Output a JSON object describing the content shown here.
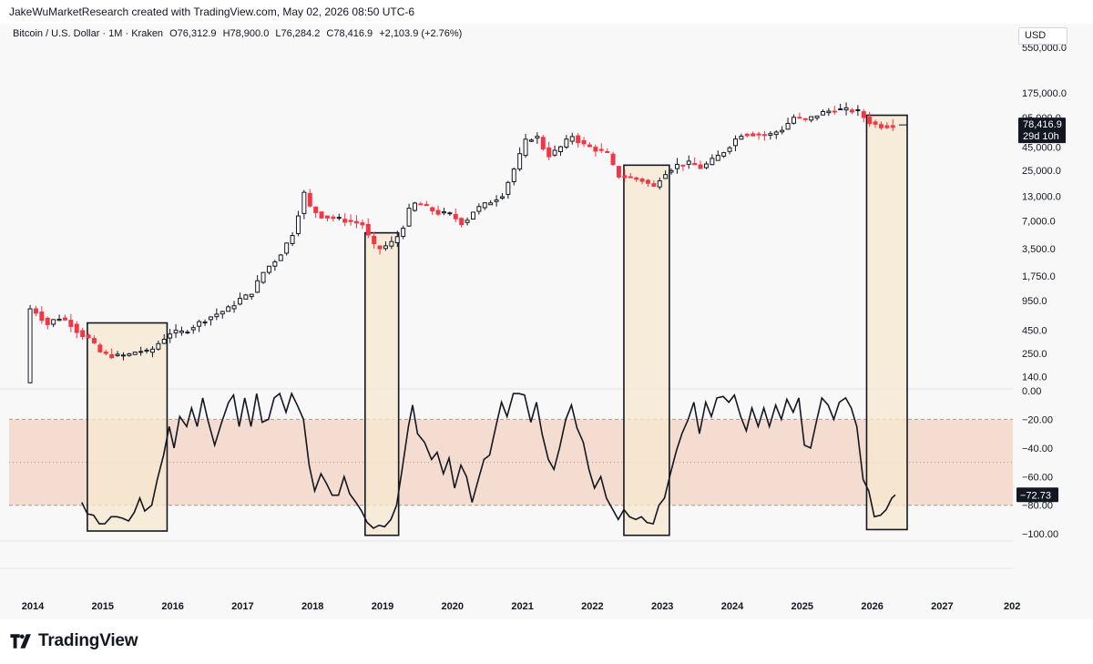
{
  "header": {
    "credit": "JakeWuMarketResearch created with TradingView.com, May 02, 2026 08:50 UTC-6"
  },
  "legend": {
    "symbol": "Bitcoin / U.S. Dollar · 1M · Kraken",
    "open": "O76,312.9",
    "high": "H78,900.0",
    "low": "L76,284.2",
    "close": "C78,416.9",
    "change": "+2,103.9 (+2.76%)"
  },
  "currency": "USD",
  "price_badge": {
    "price": "78,416.9",
    "countdown": "29d 10h"
  },
  "osc_badge": "−72.73",
  "footer": {
    "brand": "TradingView"
  },
  "colors": {
    "up": "#ffffff",
    "down": "#f23645",
    "outline": "#131722",
    "box_fill": "#f7e7cf",
    "band_fill": "#f4ddd0"
  },
  "chart_data": [
    {
      "type": "candlestick",
      "scale": "log",
      "x_ticks": [
        "2014",
        "2015",
        "2016",
        "2017",
        "2018",
        "2019",
        "2020",
        "2021",
        "2022",
        "2023",
        "2024",
        "2025",
        "2026",
        "2027",
        "202"
      ],
      "y_ticks": [
        "140.0",
        "250.0",
        "450.0",
        "950.0",
        "1,750.0",
        "3,500.0",
        "7,000.0",
        "13,000.0",
        "25,000.0",
        "45,000.0",
        "95,000.0",
        "175,000.0",
        "550,000.0"
      ],
      "ylim": [
        110,
        400000
      ],
      "price_path": [
        [
          2013.92,
          120
        ],
        [
          2013.96,
          800
        ],
        [
          2014.08,
          720
        ],
        [
          2014.25,
          520
        ],
        [
          2014.4,
          620
        ],
        [
          2014.55,
          560
        ],
        [
          2014.7,
          420
        ],
        [
          2014.85,
          360
        ],
        [
          2015.0,
          260
        ],
        [
          2015.1,
          240
        ],
        [
          2015.25,
          235
        ],
        [
          2015.4,
          240
        ],
        [
          2015.55,
          270
        ],
        [
          2015.7,
          255
        ],
        [
          2015.85,
          330
        ],
        [
          2016.0,
          420
        ],
        [
          2016.2,
          430
        ],
        [
          2016.45,
          560
        ],
        [
          2016.6,
          640
        ],
        [
          2016.85,
          780
        ],
        [
          2017.0,
          980
        ],
        [
          2017.15,
          1100
        ],
        [
          2017.35,
          2000
        ],
        [
          2017.55,
          2800
        ],
        [
          2017.75,
          5000
        ],
        [
          2017.92,
          14000
        ],
        [
          2018.0,
          10000
        ],
        [
          2018.15,
          8000
        ],
        [
          2018.35,
          7500
        ],
        [
          2018.55,
          7000
        ],
        [
          2018.75,
          6500
        ],
        [
          2018.9,
          3800
        ],
        [
          2019.0,
          3500
        ],
        [
          2019.15,
          3900
        ],
        [
          2019.3,
          5200
        ],
        [
          2019.45,
          10500
        ],
        [
          2019.55,
          11000
        ],
        [
          2019.7,
          9500
        ],
        [
          2019.85,
          8500
        ],
        [
          2020.0,
          8300
        ],
        [
          2020.2,
          6500
        ],
        [
          2020.35,
          9200
        ],
        [
          2020.55,
          11000
        ],
        [
          2020.75,
          13500
        ],
        [
          2020.95,
          29000
        ],
        [
          2021.1,
          55000
        ],
        [
          2021.25,
          58000
        ],
        [
          2021.4,
          36000
        ],
        [
          2021.55,
          42000
        ],
        [
          2021.75,
          60000
        ],
        [
          2021.9,
          48000
        ],
        [
          2022.1,
          42000
        ],
        [
          2022.25,
          38000
        ],
        [
          2022.4,
          22000
        ],
        [
          2022.55,
          21000
        ],
        [
          2022.75,
          19500
        ],
        [
          2022.92,
          16500
        ],
        [
          2023.05,
          23000
        ],
        [
          2023.25,
          28500
        ],
        [
          2023.45,
          30000
        ],
        [
          2023.6,
          26500
        ],
        [
          2023.8,
          34000
        ],
        [
          2023.95,
          42000
        ],
        [
          2024.15,
          62000
        ],
        [
          2024.3,
          63000
        ],
        [
          2024.55,
          60000
        ],
        [
          2024.75,
          70000
        ],
        [
          2024.92,
          95000
        ],
        [
          2025.1,
          88000
        ],
        [
          2025.3,
          105000
        ],
        [
          2025.5,
          115000
        ],
        [
          2025.7,
          114000
        ],
        [
          2025.85,
          109000
        ],
        [
          2025.95,
          90000
        ],
        [
          2026.05,
          80000
        ],
        [
          2026.2,
          76000
        ],
        [
          2026.33,
          78416.9
        ]
      ]
    },
    {
      "type": "line",
      "y_ticks": [
        "0.00",
        "−20.00",
        "−40.00",
        "−60.00",
        "−80.00",
        "−100.00"
      ],
      "ylim": [
        -105,
        0
      ],
      "band": [
        -80,
        -20
      ],
      "levels": [
        -20,
        -50,
        -80
      ],
      "series": [
        {
          "values": [
            [
              2014.7,
              -78
            ],
            [
              2014.78,
              -86
            ],
            [
              2014.87,
              -87
            ],
            [
              2014.95,
              -93
            ],
            [
              2015.03,
              -93
            ],
            [
              2015.12,
              -88
            ],
            [
              2015.2,
              -88
            ],
            [
              2015.28,
              -89
            ],
            [
              2015.37,
              -91
            ],
            [
              2015.45,
              -85
            ],
            [
              2015.53,
              -75
            ],
            [
              2015.6,
              -84
            ],
            [
              2015.7,
              -80
            ],
            [
              2015.78,
              -62
            ],
            [
              2015.87,
              -45
            ],
            [
              2015.95,
              -25
            ],
            [
              2016.02,
              -40
            ],
            [
              2016.1,
              -18
            ],
            [
              2016.2,
              -25
            ],
            [
              2016.27,
              -12
            ],
            [
              2016.35,
              -25
            ],
            [
              2016.43,
              -5
            ],
            [
              2016.5,
              -20
            ],
            [
              2016.6,
              -38
            ],
            [
              2016.7,
              -22
            ],
            [
              2016.8,
              -8
            ],
            [
              2016.87,
              -3
            ],
            [
              2016.95,
              -25
            ],
            [
              2017.03,
              -5
            ],
            [
              2017.12,
              -25
            ],
            [
              2017.2,
              -2
            ],
            [
              2017.28,
              -22
            ],
            [
              2017.37,
              -20
            ],
            [
              2017.45,
              -5
            ],
            [
              2017.53,
              -2
            ],
            [
              2017.62,
              -15
            ],
            [
              2017.7,
              -2
            ],
            [
              2017.78,
              -10
            ],
            [
              2017.87,
              -20
            ],
            [
              2017.95,
              -52
            ],
            [
              2018.03,
              -70
            ],
            [
              2018.12,
              -58
            ],
            [
              2018.2,
              -65
            ],
            [
              2018.28,
              -73
            ],
            [
              2018.37,
              -73
            ],
            [
              2018.45,
              -60
            ],
            [
              2018.53,
              -72
            ],
            [
              2018.62,
              -78
            ],
            [
              2018.7,
              -84
            ],
            [
              2018.78,
              -92
            ],
            [
              2018.87,
              -96
            ],
            [
              2018.95,
              -94
            ],
            [
              2019.03,
              -95
            ],
            [
              2019.12,
              -90
            ],
            [
              2019.2,
              -80
            ],
            [
              2019.28,
              -55
            ],
            [
              2019.37,
              -25
            ],
            [
              2019.43,
              -10
            ],
            [
              2019.5,
              -30
            ],
            [
              2019.6,
              -36
            ],
            [
              2019.7,
              -48
            ],
            [
              2019.78,
              -43
            ],
            [
              2019.87,
              -58
            ],
            [
              2019.95,
              -47
            ],
            [
              2020.03,
              -68
            ],
            [
              2020.12,
              -52
            ],
            [
              2020.2,
              -60
            ],
            [
              2020.28,
              -78
            ],
            [
              2020.37,
              -62
            ],
            [
              2020.45,
              -48
            ],
            [
              2020.53,
              -45
            ],
            [
              2020.62,
              -25
            ],
            [
              2020.7,
              -8
            ],
            [
              2020.78,
              -18
            ],
            [
              2020.87,
              -2
            ],
            [
              2020.95,
              -2
            ],
            [
              2021.03,
              -3
            ],
            [
              2021.12,
              -22
            ],
            [
              2021.2,
              -8
            ],
            [
              2021.28,
              -30
            ],
            [
              2021.37,
              -48
            ],
            [
              2021.45,
              -55
            ],
            [
              2021.53,
              -40
            ],
            [
              2021.62,
              -20
            ],
            [
              2021.7,
              -10
            ],
            [
              2021.78,
              -26
            ],
            [
              2021.87,
              -36
            ],
            [
              2021.95,
              -55
            ],
            [
              2022.03,
              -68
            ],
            [
              2022.12,
              -60
            ],
            [
              2022.2,
              -75
            ],
            [
              2022.28,
              -82
            ],
            [
              2022.37,
              -90
            ],
            [
              2022.45,
              -83
            ],
            [
              2022.53,
              -88
            ],
            [
              2022.62,
              -90
            ],
            [
              2022.7,
              -88
            ],
            [
              2022.78,
              -92
            ],
            [
              2022.87,
              -93
            ],
            [
              2022.95,
              -80
            ],
            [
              2023.03,
              -75
            ],
            [
              2023.12,
              -57
            ],
            [
              2023.2,
              -42
            ],
            [
              2023.28,
              -30
            ],
            [
              2023.37,
              -20
            ],
            [
              2023.45,
              -8
            ],
            [
              2023.53,
              -30
            ],
            [
              2023.62,
              -8
            ],
            [
              2023.7,
              -18
            ],
            [
              2023.78,
              -5
            ],
            [
              2023.87,
              -4
            ],
            [
              2023.95,
              -8
            ],
            [
              2024.03,
              -3
            ],
            [
              2024.12,
              -18
            ],
            [
              2024.2,
              -28
            ],
            [
              2024.28,
              -12
            ],
            [
              2024.37,
              -25
            ],
            [
              2024.45,
              -12
            ],
            [
              2024.53,
              -25
            ],
            [
              2024.62,
              -10
            ],
            [
              2024.7,
              -20
            ],
            [
              2024.78,
              -6
            ],
            [
              2024.87,
              -15
            ],
            [
              2024.95,
              -5
            ],
            [
              2025.03,
              -38
            ],
            [
              2025.12,
              -40
            ],
            [
              2025.2,
              -22
            ],
            [
              2025.28,
              -5
            ],
            [
              2025.37,
              -10
            ],
            [
              2025.45,
              -20
            ],
            [
              2025.53,
              -8
            ],
            [
              2025.62,
              -5
            ],
            [
              2025.7,
              -12
            ],
            [
              2025.78,
              -25
            ],
            [
              2025.87,
              -62
            ],
            [
              2025.95,
              -70
            ],
            [
              2026.03,
              -88
            ],
            [
              2026.12,
              -87
            ],
            [
              2026.2,
              -83
            ],
            [
              2026.28,
              -75
            ],
            [
              2026.33,
              -72.73
            ]
          ]
        }
      ]
    }
  ],
  "highlight_boxes": [
    {
      "x_from": 2014.78,
      "x_to": 2015.92,
      "price_top": 540,
      "osc_bottom": -98
    },
    {
      "x_from": 2018.75,
      "x_to": 2019.23,
      "price_top": 5200,
      "osc_bottom": -101
    },
    {
      "x_from": 2022.45,
      "x_to": 2023.1,
      "price_top": 28500,
      "osc_bottom": -101
    },
    {
      "x_from": 2025.92,
      "x_to": 2026.5,
      "price_top": 100000,
      "osc_bottom": -97
    }
  ]
}
